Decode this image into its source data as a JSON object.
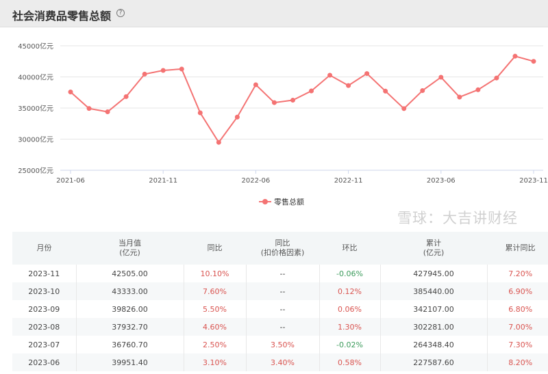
{
  "header": {
    "title": "社会消费品零售总额",
    "help_icon": "?"
  },
  "chart_data": {
    "type": "line",
    "categories": [
      "2021-06",
      "2021-07",
      "2021-08",
      "2021-09",
      "2021-10",
      "2021-11",
      "2021-12",
      "2022-03",
      "2022-04",
      "2022-05",
      "2022-06",
      "2022-07",
      "2022-08",
      "2022-09",
      "2022-10",
      "2022-11",
      "2022-12",
      "2023-03",
      "2023-04",
      "2023-05",
      "2023-06",
      "2023-07",
      "2023-08",
      "2023-09",
      "2023-10",
      "2023-11"
    ],
    "x_tick_labels": [
      "2021-06",
      "2021-11",
      "2022-06",
      "2022-11",
      "2023-06",
      "2023-11"
    ],
    "series": [
      {
        "name": "零售总额",
        "color": "#f47373",
        "values": [
          37586,
          34925,
          34395,
          36833,
          40454,
          41043,
          41269,
          34233,
          29483,
          33547,
          38742,
          35870,
          36258,
          37745,
          40271,
          38615,
          40542,
          37715,
          34910,
          37803,
          39951,
          36761,
          37933,
          39826,
          43333,
          42505
        ]
      }
    ],
    "y_ticks": [
      "25000亿元",
      "30000亿元",
      "35000亿元",
      "40000亿元",
      "45000亿元"
    ],
    "ylim": [
      25000,
      45000
    ],
    "grid": true,
    "legend": "bottom"
  },
  "table": {
    "headers": [
      [
        "月份",
        ""
      ],
      [
        "当月值",
        "(亿元)"
      ],
      [
        "同比",
        ""
      ],
      [
        "同比",
        "(扣价格因素)"
      ],
      [
        "环比",
        ""
      ],
      [
        "累计",
        "(亿元)"
      ],
      [
        "累计同比",
        ""
      ]
    ],
    "rows": [
      [
        "2023-11",
        "42505.00",
        "10.10%",
        "--",
        "-0.06%",
        "427945.00",
        "7.20%"
      ],
      [
        "2023-10",
        "43333.00",
        "7.60%",
        "--",
        "0.12%",
        "385440.00",
        "6.90%"
      ],
      [
        "2023-09",
        "39826.00",
        "5.50%",
        "--",
        "0.06%",
        "342107.00",
        "6.80%"
      ],
      [
        "2023-08",
        "37932.70",
        "4.60%",
        "--",
        "1.30%",
        "302281.00",
        "7.00%"
      ],
      [
        "2023-07",
        "36760.70",
        "2.50%",
        "3.50%",
        "-0.02%",
        "264348.40",
        "7.30%"
      ],
      [
        "2023-06",
        "39951.40",
        "3.10%",
        "3.40%",
        "0.58%",
        "227587.60",
        "8.20%"
      ]
    ]
  },
  "watermark": "雪球：大吉讲财经"
}
